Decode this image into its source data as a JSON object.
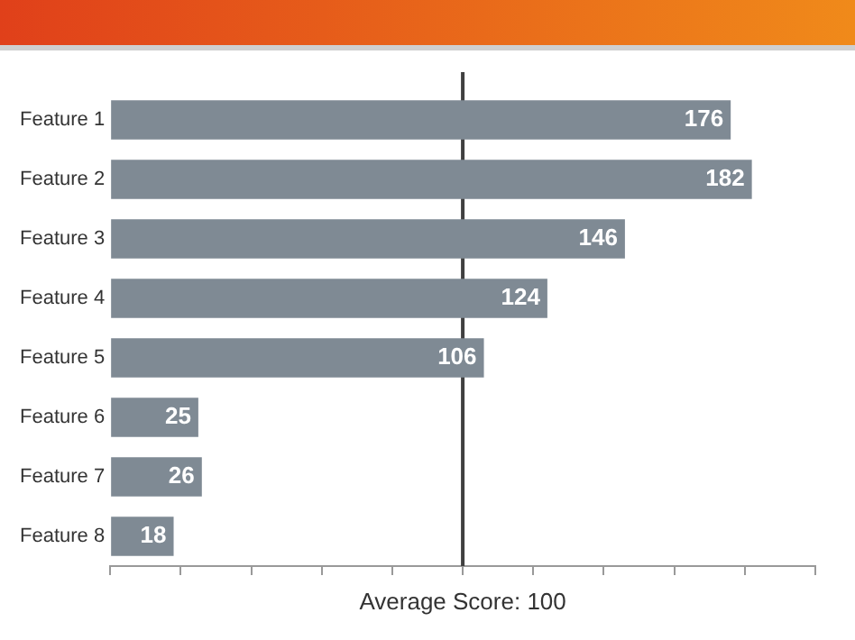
{
  "chart_data": {
    "type": "bar",
    "orientation": "horizontal",
    "categories": [
      "Feature 1",
      "Feature 2",
      "Feature 3",
      "Feature 4",
      "Feature 5",
      "Feature 6",
      "Feature 7",
      "Feature 8"
    ],
    "values": [
      176,
      182,
      146,
      124,
      106,
      25,
      26,
      18
    ],
    "color": "#7f8a94",
    "xlim": [
      0,
      200
    ],
    "xticks": [
      {
        "value": 0,
        "label": null
      },
      {
        "value": 20,
        "label": null
      },
      {
        "value": 40,
        "label": null
      },
      {
        "value": 60,
        "label": null
      },
      {
        "value": 80,
        "label": null
      },
      {
        "value": 100,
        "label": null
      },
      {
        "value": 120,
        "label": null
      },
      {
        "value": 140,
        "label": null
      },
      {
        "value": 160,
        "label": null
      },
      {
        "value": 180,
        "label": null
      },
      {
        "value": 200,
        "label": null
      }
    ],
    "tick_labels": "y",
    "data_labels": true,
    "grid": false,
    "legend": false,
    "ref_lines": [
      {
        "axis": "x",
        "value": 100,
        "label": "Average Score: 100",
        "color": "#404040"
      }
    ]
  }
}
